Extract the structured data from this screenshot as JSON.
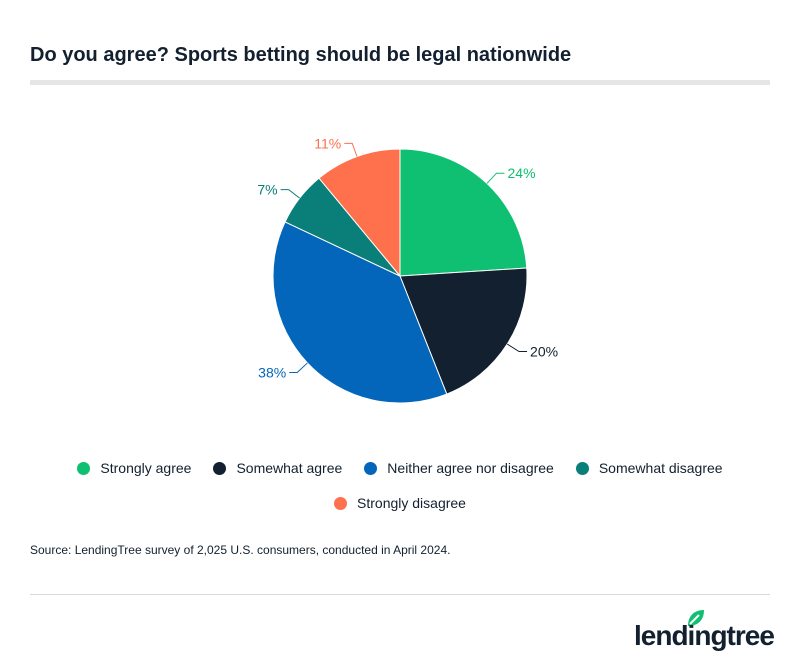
{
  "chart_data": {
    "type": "pie",
    "title": "Do you agree? Sports betting should be legal nationwide",
    "categories": [
      "Strongly agree",
      "Somewhat agree",
      "Neither agree nor disagree",
      "Somewhat disagree",
      "Strongly disagree"
    ],
    "values": [
      24,
      20,
      38,
      7,
      11
    ],
    "labels": [
      "24%",
      "20%",
      "38%",
      "7%",
      "11%"
    ],
    "colors": [
      "#0fc073",
      "#12202f",
      "#0466ba",
      "#0a7e78",
      "#ff704d"
    ],
    "start": "12 o'clock, clockwise",
    "legend_position": "bottom"
  },
  "source": "Source: LendingTree survey of 2,025 U.S. consumers, conducted in April 2024.",
  "logo": {
    "text": "lendingtree",
    "icon": "leaf-icon"
  }
}
